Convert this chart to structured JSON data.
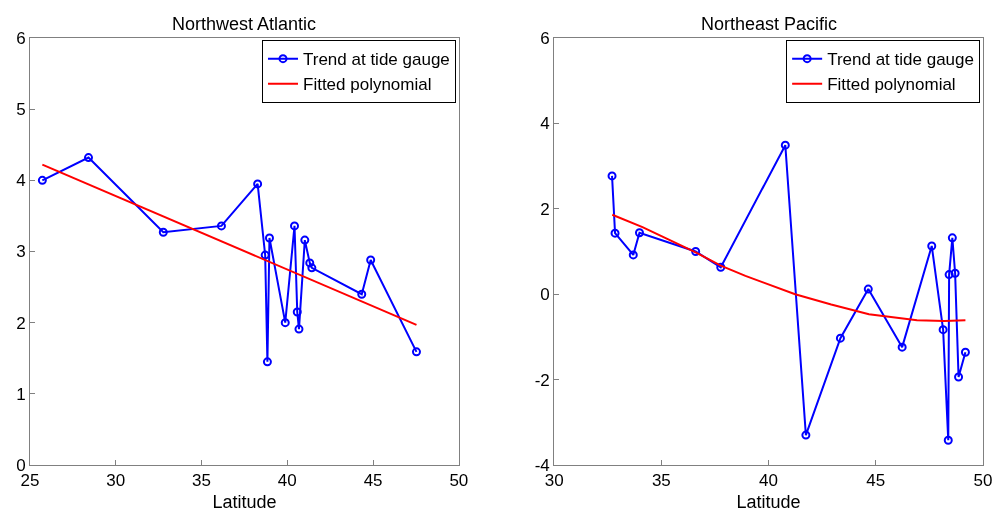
{
  "chart_data": [
    {
      "type": "line",
      "title": "Northwest Atlantic",
      "xlabel": "Latitude",
      "xlim": [
        25,
        50
      ],
      "xticks": [
        25,
        30,
        35,
        40,
        45,
        50
      ],
      "ylim": [
        0,
        6
      ],
      "yticks": [
        0,
        1,
        2,
        3,
        4,
        5,
        6
      ],
      "legend": "top right",
      "series": [
        {
          "name": "Trend at tide gauge",
          "color": "#0000ff",
          "marker": "circle",
          "x": [
            25.72,
            28.41,
            32.77,
            36.16,
            38.27,
            38.71,
            38.84,
            38.96,
            39.88,
            40.42,
            40.58,
            40.68,
            41.02,
            41.31,
            41.43,
            44.34,
            44.86,
            47.53
          ],
          "values": [
            4.0,
            4.32,
            3.27,
            3.36,
            3.95,
            2.95,
            1.45,
            3.19,
            2.0,
            3.36,
            2.15,
            1.91,
            3.16,
            2.84,
            2.77,
            2.4,
            2.88,
            1.59
          ]
        },
        {
          "name": "Fitted polynomial",
          "color": "#ff0000",
          "marker": "none",
          "x": [
            25.72,
            47.53
          ],
          "values": [
            4.22,
            1.97
          ]
        }
      ]
    },
    {
      "type": "line",
      "title": "Northeast Pacific",
      "xlabel": "Latitude",
      "xlim": [
        30,
        50
      ],
      "xticks": [
        30,
        35,
        40,
        45,
        50
      ],
      "ylim": [
        -4,
        6
      ],
      "yticks": [
        -4,
        -2,
        0,
        2,
        4,
        6
      ],
      "legend": "top right",
      "series": [
        {
          "name": "Trend at tide gauge",
          "color": "#0000ff",
          "marker": "circle",
          "x": [
            32.7,
            32.84,
            33.69,
            33.98,
            36.6,
            37.77,
            40.78,
            41.74,
            43.35,
            44.65,
            46.23,
            47.61,
            48.14,
            48.38,
            48.42,
            48.57,
            48.7,
            48.86,
            49.18
          ],
          "values": [
            2.77,
            1.43,
            0.92,
            1.44,
            1.0,
            0.63,
            3.49,
            -3.3,
            -1.03,
            0.12,
            -1.24,
            1.13,
            -0.83,
            -3.42,
            0.46,
            1.32,
            0.49,
            -1.94,
            -1.36
          ]
        },
        {
          "name": "Fitted polynomial",
          "color": "#ff0000",
          "marker": "none",
          "x": [
            32.71,
            34.12,
            36.6,
            37.77,
            38.92,
            41.24,
            42.92,
            44.68,
            46.92,
            48.2,
            49.18
          ],
          "values": [
            1.86,
            1.57,
            0.98,
            0.67,
            0.43,
            0.0,
            -0.24,
            -0.47,
            -0.61,
            -0.63,
            -0.61
          ]
        }
      ]
    }
  ]
}
